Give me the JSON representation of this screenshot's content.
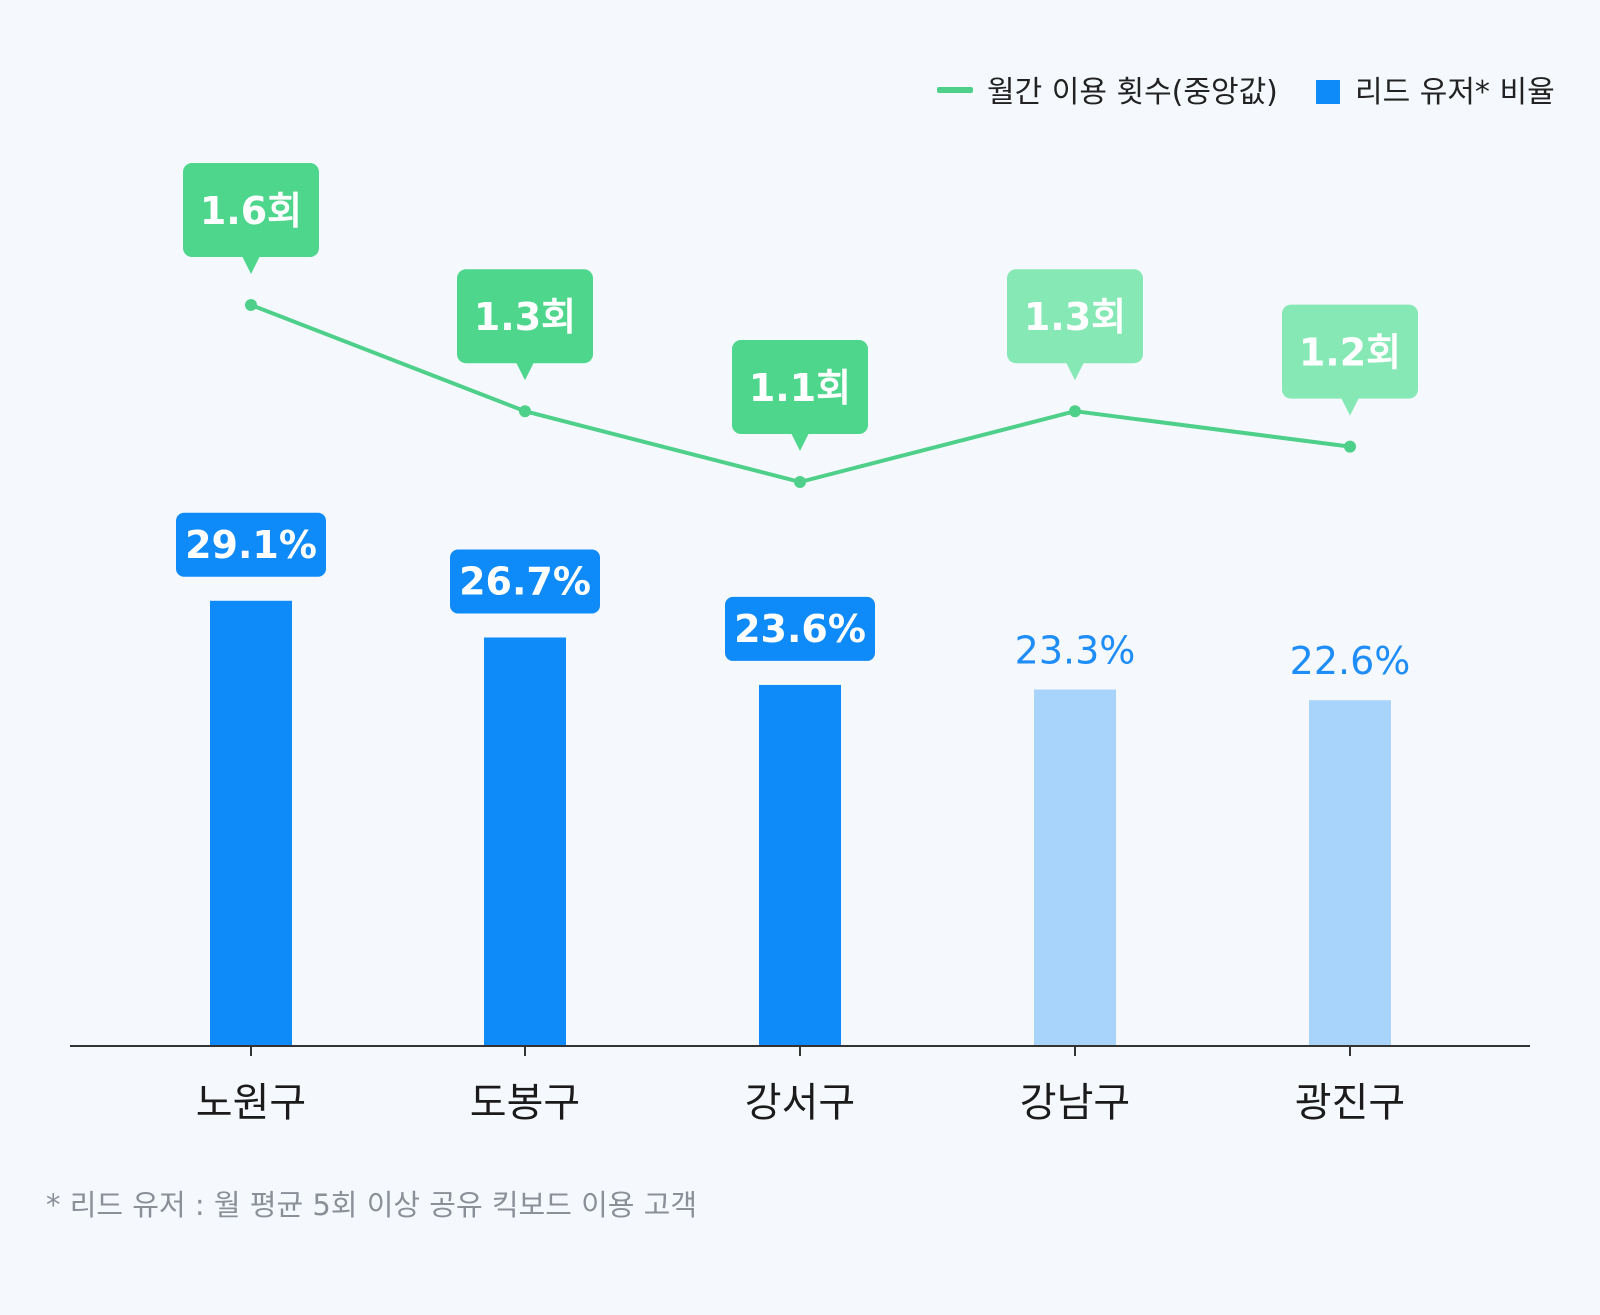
{
  "legend": {
    "line_label": "월간 이용 횟수(중앙값)",
    "bar_label": "리드 유저* 비율"
  },
  "footnote": "* 리드 유저 : 월 평균 5회 이상 공유 킥보드 이용 고객",
  "colors": {
    "bar_strong": "#0f8af9",
    "bar_light": "#a8d3fb",
    "line": "#4ed08a",
    "tag_strong": "#4fd68d",
    "tag_light": "#86e8b4",
    "axis": "#333333"
  },
  "chart_data": {
    "type": "bar",
    "categories": [
      "노원구",
      "도봉구",
      "강서구",
      "강남구",
      "광진구"
    ],
    "series": [
      {
        "name": "리드 유저* 비율",
        "type": "bar",
        "values": [
          29.1,
          26.7,
          23.6,
          23.3,
          22.6
        ],
        "labels": [
          "29.1%",
          "26.7%",
          "23.6%",
          "23.3%",
          "22.6%"
        ],
        "highlighted": [
          true,
          true,
          true,
          false,
          false
        ]
      },
      {
        "name": "월간 이용 횟수(중앙값)",
        "type": "line",
        "values": [
          1.6,
          1.3,
          1.1,
          1.3,
          1.2
        ],
        "labels": [
          "1.6회",
          "1.3회",
          "1.1회",
          "1.3회",
          "1.2회"
        ],
        "highlighted": [
          true,
          true,
          true,
          false,
          false
        ]
      }
    ],
    "ylim": [
      0,
      30
    ],
    "grid": false,
    "legend_position": "top-right"
  }
}
